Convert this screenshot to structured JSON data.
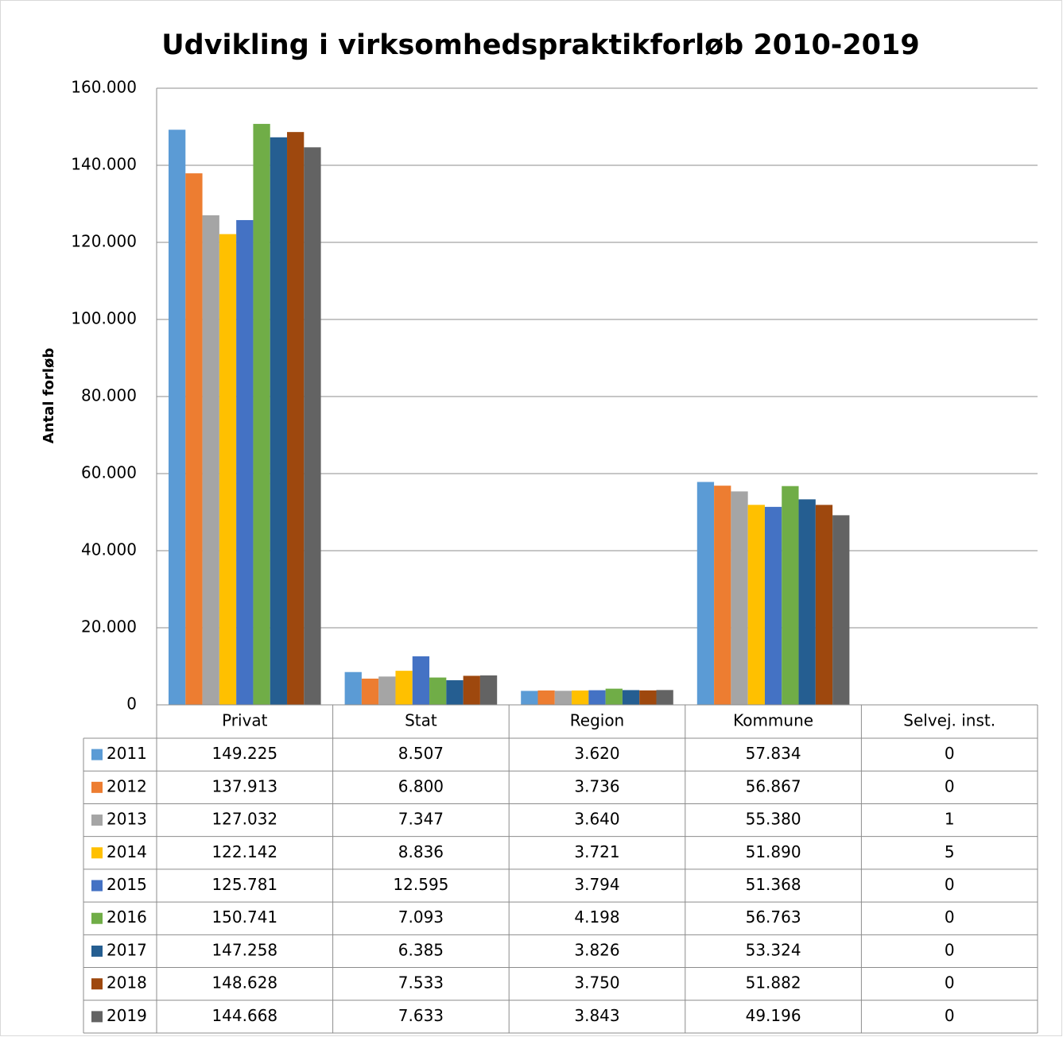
{
  "chart_data": {
    "type": "bar",
    "title": "Udvikling i virksomhedspraktikforløb 2010-2019",
    "y_label": "Antal forløb",
    "categories": [
      "Privat",
      "Stat",
      "Region",
      "Kommune",
      "Selvej. inst."
    ],
    "ylim": [
      0,
      160000
    ],
    "yticks": [
      0,
      {
        "value": 20000,
        "label": "20.000"
      },
      {
        "value": 40000,
        "label": "40.000"
      },
      {
        "value": 60000,
        "label": "60.000"
      },
      {
        "value": 80000,
        "label": "80.000"
      },
      {
        "value": 100000,
        "label": "100.000"
      },
      {
        "value": 120000,
        "label": "120.000"
      },
      {
        "value": 140000,
        "label": "140.000"
      },
      {
        "value": 160000,
        "label": "160.000"
      }
    ],
    "grid": true,
    "series": [
      {
        "name": "2011",
        "color": "#5B9BD5",
        "values": [
          149225,
          8507,
          3620,
          57834,
          0
        ],
        "value_labels": [
          "149.225",
          "8.507",
          "3.620",
          "57.834",
          "0"
        ]
      },
      {
        "name": "2012",
        "color": "#ED7D31",
        "values": [
          137913,
          6800,
          3736,
          56867,
          0
        ],
        "value_labels": [
          "137.913",
          "6.800",
          "3.736",
          "56.867",
          "0"
        ]
      },
      {
        "name": "2013",
        "color": "#A5A5A5",
        "values": [
          127032,
          7347,
          3640,
          55380,
          1
        ],
        "value_labels": [
          "127.032",
          "7.347",
          "3.640",
          "55.380",
          "1"
        ]
      },
      {
        "name": "2014",
        "color": "#FFC000",
        "values": [
          122142,
          8836,
          3721,
          51890,
          5
        ],
        "value_labels": [
          "122.142",
          "8.836",
          "3.721",
          "51.890",
          "5"
        ]
      },
      {
        "name": "2015",
        "color": "#4472C4",
        "values": [
          125781,
          12595,
          3794,
          51368,
          0
        ],
        "value_labels": [
          "125.781",
          "12.595",
          "3.794",
          "51.368",
          "0"
        ]
      },
      {
        "name": "2016",
        "color": "#70AD47",
        "values": [
          150741,
          7093,
          4198,
          56763,
          0
        ],
        "value_labels": [
          "150.741",
          "7.093",
          "4.198",
          "56.763",
          "0"
        ]
      },
      {
        "name": "2017",
        "color": "#255E91",
        "values": [
          147258,
          6385,
          3826,
          53324,
          0
        ],
        "value_labels": [
          "147.258",
          "6.385",
          "3.826",
          "53.324",
          "0"
        ]
      },
      {
        "name": "2018",
        "color": "#9E480E",
        "values": [
          148628,
          7533,
          3750,
          51882,
          0
        ],
        "value_labels": [
          "148.628",
          "7.533",
          "3.750",
          "51.882",
          "0"
        ]
      },
      {
        "name": "2019",
        "color": "#636363",
        "values": [
          144668,
          7633,
          3843,
          49196,
          0
        ],
        "value_labels": [
          "144.668",
          "7.633",
          "3.843",
          "49.196",
          "0"
        ]
      }
    ]
  }
}
